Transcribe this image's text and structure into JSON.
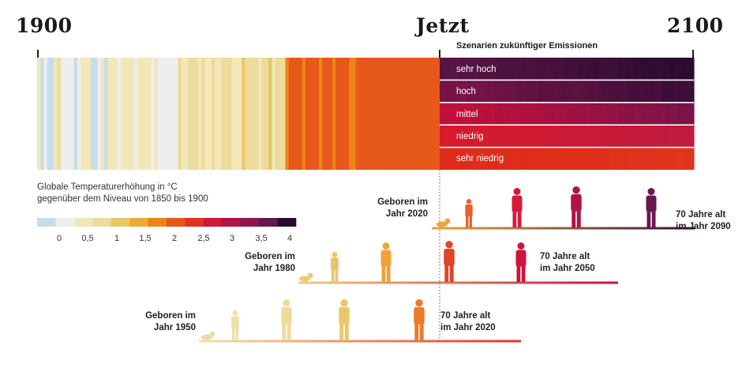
{
  "header": {
    "start_label": "1900",
    "now_label": "Jetzt",
    "end_label": "2100"
  },
  "scenarios": {
    "title": "Szenarien zukünftiger Emissionen",
    "items": [
      {
        "label": "sehr hoch",
        "base_color": "#5a1544",
        "end_color": "#2a0b2e"
      },
      {
        "label": "hoch",
        "base_color": "#7a1448",
        "end_color": "#3a0e38"
      },
      {
        "label": "mittel",
        "base_color": "#c4103c",
        "end_color": "#7a1448"
      },
      {
        "label": "niedrig",
        "base_color": "#d81a2a",
        "end_color": "#c01a40"
      },
      {
        "label": "sehr niedrig",
        "base_color": "#e02a1a",
        "end_color": "#e0341c"
      }
    ]
  },
  "legend": {
    "title_line1": "Globale Temperaturerhöhung in °C",
    "title_line2": "gegenüber dem Niveau von 1850 bis 1900",
    "colors": [
      "#c6dde9",
      "#eeeeee",
      "#f2e7b6",
      "#eddb9c",
      "#e8c765",
      "#efaa36",
      "#ec8513",
      "#e7581b",
      "#e43024",
      "#d4143a",
      "#b4114a",
      "#8d1650",
      "#62184f",
      "#2a0c2c"
    ],
    "ticks": [
      "0",
      "0,5",
      "1",
      "1,5",
      "2",
      "2,5",
      "3",
      "3,5",
      "4"
    ]
  },
  "generations": [
    {
      "born_l1": "Geboren im",
      "born_l2": "Jahr 2020",
      "age_l1": "70 Jahre alt",
      "age_l2": "im Jahr 2090"
    },
    {
      "born_l1": "Geboren im",
      "born_l2": "Jahr 1980",
      "age_l1": "70 Jahre alt",
      "age_l2": "im Jahr 2050"
    },
    {
      "born_l1": "Geboren im",
      "born_l2": "Jahr 1950",
      "age_l1": "70 Jahre alt",
      "age_l2": "im Jahr 2020"
    }
  ]
}
